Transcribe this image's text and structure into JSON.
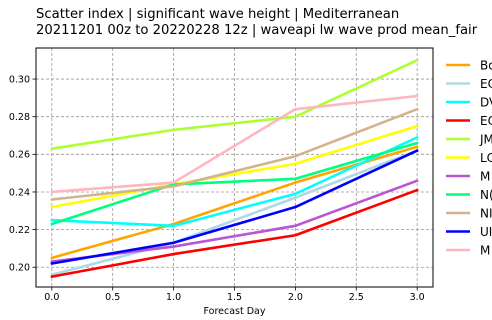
{
  "title_line1": "Scatter index  |  significant wave height  |  Mediterranean",
  "title_line2": "20211201 00z to 20220228 12z  |  waveapi lw wave prod mean_fair",
  "chart_data": {
    "type": "line",
    "xlabel": "Forecast Day",
    "ylabel": "",
    "x": [
      0,
      1,
      2,
      3
    ],
    "xlim": [
      -0.13,
      3.13
    ],
    "ylim": [
      0.1895,
      0.3165
    ],
    "xticks": [
      "0.0",
      "0.5",
      "1.0",
      "1.5",
      "2.0",
      "2.5",
      "3.0"
    ],
    "yticks": [
      "0.20",
      "0.22",
      "0.24",
      "0.26",
      "0.28",
      "0.30"
    ],
    "grid": true,
    "legend": "right, outside plot",
    "series": [
      {
        "name": "Bo",
        "color": "#ffa500",
        "values": [
          0.205,
          0.223,
          0.245,
          0.264
        ]
      },
      {
        "name": "EC",
        "color": "#add8e6",
        "values": [
          0.196,
          0.213,
          0.237,
          0.262
        ]
      },
      {
        "name": "DV",
        "color": "#00ffff",
        "values": [
          0.225,
          0.222,
          0.239,
          0.269
        ]
      },
      {
        "name": "EC",
        "color": "#ff0000",
        "values": [
          0.195,
          0.207,
          0.217,
          0.241
        ]
      },
      {
        "name": "JM",
        "color": "#adff2f",
        "values": [
          0.263,
          0.273,
          0.28,
          0.31
        ]
      },
      {
        "name": "LC",
        "color": "#ffff00",
        "values": [
          0.232,
          0.244,
          0.255,
          0.275
        ]
      },
      {
        "name": "M",
        "color": "#ba55d3",
        "values": [
          0.203,
          0.211,
          0.222,
          0.246
        ]
      },
      {
        "name": "N(",
        "color": "#00ff7f",
        "values": [
          0.223,
          0.244,
          0.247,
          0.266
        ]
      },
      {
        "name": "NI",
        "color": "#d2b48c",
        "values": [
          0.236,
          0.243,
          0.259,
          0.284
        ]
      },
      {
        "name": "UI",
        "color": "#0000ff",
        "values": [
          0.202,
          0.213,
          0.232,
          0.262
        ]
      },
      {
        "name": "M",
        "color": "#ffb6c1",
        "values": [
          0.24,
          0.245,
          0.284,
          0.291
        ]
      }
    ]
  }
}
